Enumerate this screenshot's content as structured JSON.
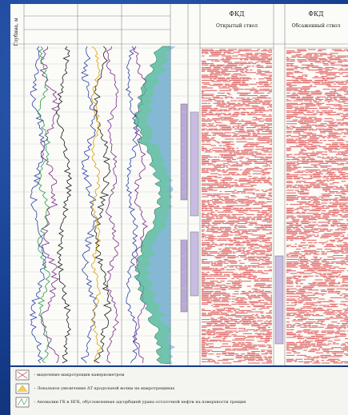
{
  "header": {
    "depth_label": "Глубина, м"
  },
  "panels": [
    {
      "title": "ФКД",
      "subtitle": "Открытый ствол"
    },
    {
      "title": "ФКД",
      "subtitle": "Обсаженный ствол"
    }
  ],
  "legend": [
    "– выделение макротрещин кавернометром",
    "– Локальное увеличение ΔT продольной волны на макротрещинах",
    "– Аномалии ГК и НГК, обусловленные адсорбцией урана остаточной нефти на поверхности трещин"
  ]
}
